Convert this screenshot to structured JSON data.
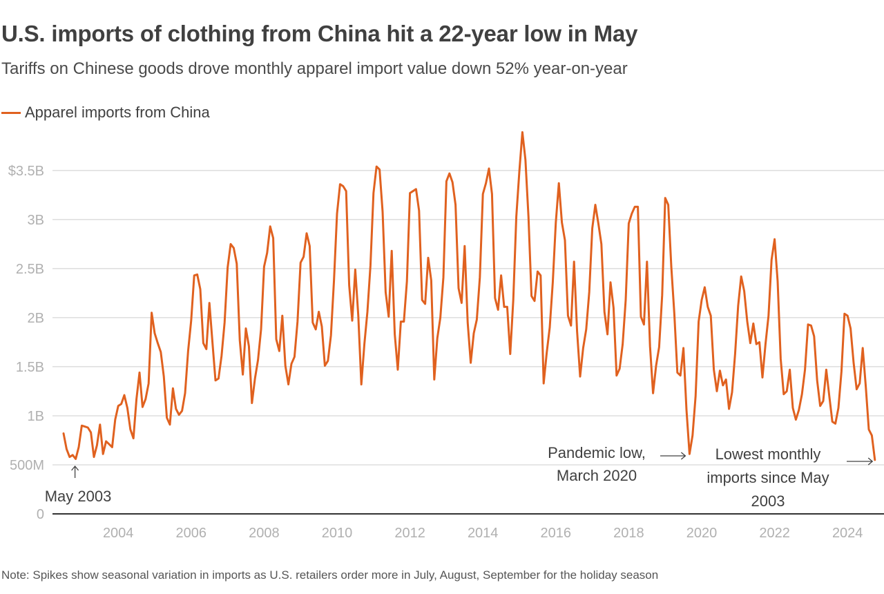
{
  "header": {
    "title": "U.S. imports of clothing from China hit a 22-year low in May",
    "subtitle": "Tariffs on Chinese goods drove monthly apparel import value down 52% year-on-year"
  },
  "legend": {
    "label": "Apparel imports from China",
    "color": "#e0611f"
  },
  "note": "Note: Spikes show seasonal variation in imports as U.S. retailers order more in July, August, September for the holiday season",
  "colors": {
    "series": "#e0611f",
    "grid": "#cccccc",
    "axis": "#333333",
    "tick_text": "#b0b0b0",
    "text": "#404040"
  },
  "chart_data": {
    "type": "line",
    "title": "U.S. imports of clothing from China hit a 22-year low in May",
    "subtitle": "Tariffs on Chinese goods drove monthly apparel import value down 52% year-on-year",
    "ylim": [
      0,
      3.9
    ],
    "y_unit": "billions of USD",
    "yticks": [
      {
        "value": 0,
        "label": "0"
      },
      {
        "value": 0.5,
        "label": "500M"
      },
      {
        "value": 1.0,
        "label": "1B"
      },
      {
        "value": 1.5,
        "label": "1.5B"
      },
      {
        "value": 2.0,
        "label": "2B"
      },
      {
        "value": 2.5,
        "label": "2.5B"
      },
      {
        "value": 3.0,
        "label": "3B"
      },
      {
        "value": 3.5,
        "label": "$3.5B"
      }
    ],
    "xticks": [
      "2004",
      "2006",
      "2008",
      "2010",
      "2012",
      "2014",
      "2016",
      "2018",
      "2020",
      "2022",
      "2024"
    ],
    "grid": true,
    "series": [
      {
        "name": "Apparel imports from China",
        "start": "2003-01",
        "frequency": "monthly",
        "values": [
          0.82,
          0.66,
          0.58,
          0.6,
          0.56,
          0.68,
          0.9,
          0.89,
          0.88,
          0.83,
          0.58,
          0.7,
          0.91,
          0.61,
          0.74,
          0.71,
          0.68,
          0.96,
          1.1,
          1.12,
          1.21,
          1.08,
          0.86,
          0.77,
          1.17,
          1.44,
          1.09,
          1.17,
          1.33,
          2.05,
          1.84,
          1.74,
          1.65,
          1.4,
          0.98,
          0.91,
          1.28,
          1.07,
          1.01,
          1.05,
          1.23,
          1.66,
          1.97,
          2.43,
          2.44,
          2.29,
          1.74,
          1.68,
          2.15,
          1.75,
          1.36,
          1.38,
          1.61,
          1.95,
          2.51,
          2.75,
          2.71,
          2.55,
          1.77,
          1.42,
          1.89,
          1.71,
          1.13,
          1.38,
          1.57,
          1.88,
          2.52,
          2.66,
          2.93,
          2.81,
          1.78,
          1.66,
          2.02,
          1.51,
          1.32,
          1.53,
          1.6,
          1.96,
          2.56,
          2.62,
          2.86,
          2.73,
          1.95,
          1.88,
          2.06,
          1.91,
          1.51,
          1.56,
          1.82,
          2.38,
          3.06,
          3.36,
          3.34,
          3.29,
          2.33,
          1.97,
          2.49,
          2.02,
          1.32,
          1.73,
          2.06,
          2.53,
          3.27,
          3.54,
          3.51,
          3.08,
          2.26,
          2.01,
          2.68,
          1.83,
          1.47,
          1.96,
          1.96,
          2.37,
          3.27,
          3.29,
          3.31,
          3.09,
          2.18,
          2.14,
          2.61,
          2.38,
          1.37,
          1.79,
          2.0,
          2.41,
          3.39,
          3.47,
          3.38,
          3.15,
          2.3,
          2.15,
          2.73,
          1.95,
          1.54,
          1.84,
          1.98,
          2.41,
          3.26,
          3.37,
          3.52,
          3.26,
          2.2,
          2.08,
          2.43,
          2.11,
          2.11,
          1.63,
          2.18,
          3.03,
          3.49,
          3.89,
          3.61,
          3.03,
          2.22,
          2.17,
          2.47,
          2.43,
          1.33,
          1.64,
          1.9,
          2.36,
          2.97,
          3.37,
          2.97,
          2.79,
          2.02,
          1.92,
          2.57,
          1.86,
          1.4,
          1.69,
          1.88,
          2.26,
          2.91,
          3.15,
          2.96,
          2.75,
          2.06,
          1.83,
          2.36,
          2.1,
          1.41,
          1.48,
          1.73,
          2.18,
          2.96,
          3.06,
          3.13,
          3.13,
          2.01,
          1.93,
          2.57,
          1.71,
          1.23,
          1.51,
          1.7,
          2.23,
          3.22,
          3.15,
          2.52,
          2.04,
          1.44,
          1.41,
          1.69,
          1.06,
          0.61,
          0.8,
          1.2,
          1.96,
          2.18,
          2.31,
          2.11,
          2.02,
          1.47,
          1.25,
          1.46,
          1.31,
          1.37,
          1.07,
          1.24,
          1.63,
          2.12,
          2.42,
          2.27,
          1.96,
          1.74,
          1.94,
          1.73,
          1.75,
          1.39,
          1.73,
          2.02,
          2.59,
          2.8,
          2.37,
          1.58,
          1.22,
          1.25,
          1.47,
          1.08,
          0.96,
          1.06,
          1.22,
          1.47,
          1.93,
          1.92,
          1.81,
          1.36,
          1.1,
          1.15,
          1.47,
          1.2,
          0.94,
          0.92,
          1.08,
          1.45,
          2.04,
          2.02,
          1.89,
          1.54,
          1.27,
          1.33,
          1.69,
          1.3,
          0.86,
          0.8,
          0.55
        ]
      }
    ],
    "annotations": [
      {
        "text": [
          "May 2003"
        ],
        "date": "2003-05",
        "arrow": "up"
      },
      {
        "text": [
          "Pandemic low,",
          "March 2020"
        ],
        "date": "2020-03",
        "arrow": "right"
      },
      {
        "text": [
          "Lowest monthly",
          "imports since May",
          "2003"
        ],
        "date": "2025-05",
        "arrow": "right"
      }
    ]
  }
}
